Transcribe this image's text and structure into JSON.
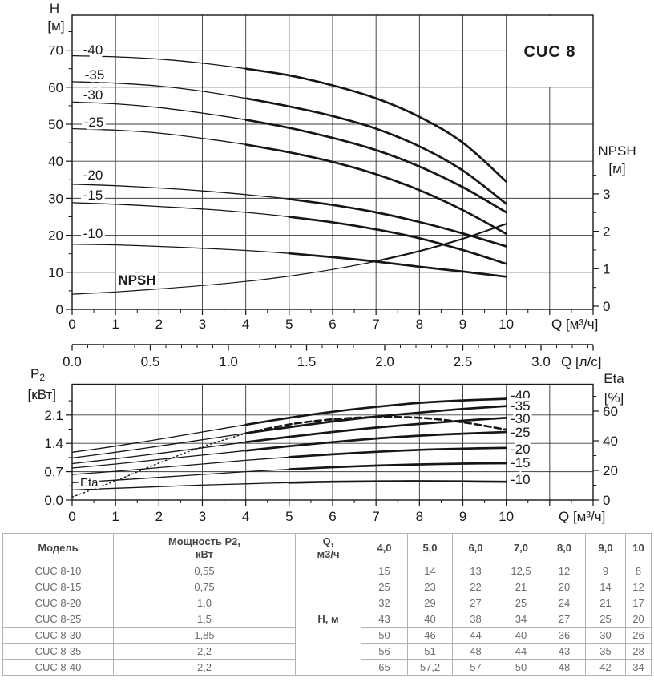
{
  "chart_data": [
    {
      "type": "line",
      "title": "CUC 8",
      "xlabel": "Q [м³/ч]",
      "x2label": "Q [л/с]",
      "ylabel_main": "H",
      "ylabel_unit": "[м]",
      "y2label_main": "NPSH",
      "y2label_unit": "[м]",
      "xlim": [
        0,
        12
      ],
      "ylim": [
        0,
        79
      ],
      "y2lim": [
        0,
        3.5
      ],
      "grid": true,
      "x_ticks": [
        0,
        1,
        2,
        3,
        4,
        5,
        6,
        7,
        8,
        9,
        10
      ],
      "x2_ticks": [
        "0.0",
        "0.5",
        "1.0",
        "1.5",
        "2.0",
        "2.5",
        "3.0"
      ],
      "y_ticks": [
        0,
        10,
        20,
        30,
        40,
        50,
        60,
        70
      ],
      "y2_ticks": [
        0,
        1,
        2,
        3
      ],
      "x": [
        0,
        1,
        2,
        3,
        4,
        5,
        6,
        7,
        8,
        9,
        10
      ],
      "series": [
        {
          "name": "-40",
          "axis": "y",
          "bold_from": 4,
          "values": [
            68.5,
            68.2,
            67.6,
            66.5,
            65.0,
            63.2,
            60.5,
            57.0,
            52.0,
            45.0,
            34.5
          ]
        },
        {
          "name": "-35",
          "axis": "y",
          "bold_from": 4,
          "values": [
            61.5,
            61.1,
            60.3,
            58.9,
            57.0,
            54.8,
            52.2,
            48.8,
            44.0,
            37.5,
            28.5
          ]
        },
        {
          "name": "-30",
          "axis": "y",
          "bold_from": 4,
          "values": [
            56.0,
            55.5,
            54.5,
            53.0,
            51.2,
            49.0,
            46.3,
            43.0,
            38.6,
            33.0,
            26.2
          ]
        },
        {
          "name": "-25",
          "axis": "y",
          "bold_from": 4,
          "values": [
            48.8,
            48.4,
            47.6,
            46.2,
            44.5,
            42.4,
            39.8,
            36.5,
            32.2,
            26.8,
            20.4
          ]
        },
        {
          "name": "-20",
          "axis": "y",
          "bold_from": 5,
          "values": [
            33.8,
            33.4,
            32.8,
            32.0,
            31.0,
            29.8,
            28.2,
            26.2,
            23.6,
            20.5,
            17.0
          ]
        },
        {
          "name": "-15",
          "axis": "y",
          "bold_from": 5,
          "values": [
            28.8,
            28.4,
            27.8,
            27.1,
            26.2,
            25.0,
            23.5,
            21.6,
            19.2,
            16.0,
            12.3
          ]
        },
        {
          "name": "-10",
          "axis": "y",
          "bold_from": 5,
          "values": [
            17.6,
            17.4,
            17.0,
            16.5,
            15.9,
            15.1,
            14.1,
            12.9,
            11.5,
            10.2,
            8.8
          ]
        },
        {
          "name": "NPSH",
          "axis": "y2",
          "bold_from": 7,
          "values": [
            0.32,
            0.38,
            0.46,
            0.55,
            0.66,
            0.8,
            0.98,
            1.2,
            1.47,
            1.8,
            2.2
          ]
        }
      ]
    },
    {
      "type": "line",
      "xlabel": "Q [м³/ч]",
      "ylabel_main": "P",
      "ylabel_sub": "2",
      "ylabel_unit": "[кВт]",
      "y2label_main": "Eta",
      "y2label_unit": "[%]",
      "xlim": [
        0,
        12
      ],
      "ylim": [
        0,
        2.85
      ],
      "y2lim": [
        0,
        78
      ],
      "grid": true,
      "x_ticks": [
        0,
        1,
        2,
        3,
        4,
        5,
        6,
        7,
        8,
        9,
        10
      ],
      "y_ticks": [
        "0.0",
        "0.7",
        "1.4",
        "2.1"
      ],
      "y2_ticks": [
        0,
        20,
        40,
        60
      ],
      "x": [
        0,
        1,
        2,
        3,
        4,
        5,
        6,
        7,
        8,
        9,
        10
      ],
      "series": [
        {
          "name": "-40",
          "axis": "y",
          "bold_from": 4,
          "values": [
            1.18,
            1.33,
            1.5,
            1.68,
            1.86,
            2.03,
            2.18,
            2.3,
            2.4,
            2.46,
            2.5
          ]
        },
        {
          "name": "-35",
          "axis": "y",
          "bold_from": 4,
          "values": [
            1.04,
            1.18,
            1.33,
            1.49,
            1.65,
            1.8,
            1.94,
            2.06,
            2.16,
            2.25,
            2.32
          ]
        },
        {
          "name": "-30",
          "axis": "y",
          "bold_from": 4,
          "values": [
            0.9,
            1.02,
            1.15,
            1.29,
            1.43,
            1.56,
            1.68,
            1.79,
            1.88,
            1.96,
            2.03
          ]
        },
        {
          "name": "-25",
          "axis": "y",
          "bold_from": 4,
          "values": [
            0.79,
            0.89,
            1.0,
            1.11,
            1.22,
            1.33,
            1.43,
            1.52,
            1.59,
            1.64,
            1.68
          ]
        },
        {
          "name": "-20",
          "axis": "y",
          "bold_from": 5,
          "values": [
            0.63,
            0.71,
            0.8,
            0.89,
            0.98,
            1.06,
            1.13,
            1.19,
            1.24,
            1.27,
            1.29
          ]
        },
        {
          "name": "-15",
          "axis": "y",
          "bold_from": 5,
          "values": [
            0.43,
            0.49,
            0.56,
            0.63,
            0.7,
            0.76,
            0.81,
            0.85,
            0.88,
            0.9,
            0.91
          ]
        },
        {
          "name": "-10",
          "axis": "y",
          "bold_from": 5,
          "values": [
            0.25,
            0.29,
            0.33,
            0.37,
            0.4,
            0.43,
            0.45,
            0.46,
            0.465,
            0.46,
            0.45
          ]
        },
        {
          "name": "Eta",
          "axis": "y2",
          "style": "dashed",
          "values": [
            2,
            13,
            25,
            36,
            45,
            51,
            54.5,
            56,
            55.5,
            52.5,
            47.5
          ]
        }
      ]
    }
  ],
  "table": {
    "headers": {
      "model": "Модель",
      "power_lines": [
        "Мощность P2,",
        "кВт"
      ],
      "q_lines": [
        "Q,",
        "м3/ч"
      ]
    },
    "q_columns": [
      "4,0",
      "5,0",
      "6,0",
      "7,0",
      "8,0",
      "9,0",
      "10"
    ],
    "body_quantity_label": "Н, м",
    "rows": [
      {
        "model": "CUC 8-10",
        "power": "0,55",
        "h_values": [
          "15",
          "14",
          "13",
          "12,5",
          "12",
          "9",
          "8"
        ]
      },
      {
        "model": "CUC 8-15",
        "power": "0,75",
        "h_values": [
          "25",
          "23",
          "22",
          "21",
          "20",
          "14",
          "12"
        ]
      },
      {
        "model": "CUC 8-20",
        "power": "1,0",
        "h_values": [
          "32",
          "29",
          "27",
          "25",
          "24",
          "21",
          "17"
        ]
      },
      {
        "model": "CUC 8-25",
        "power": "1,5",
        "h_values": [
          "43",
          "40",
          "38",
          "34",
          "27",
          "25",
          "20"
        ]
      },
      {
        "model": "CUC 8-30",
        "power": "1,85",
        "h_values": [
          "50",
          "46",
          "44",
          "40",
          "36",
          "30",
          "26"
        ]
      },
      {
        "model": "CUC 8-35",
        "power": "2,2",
        "h_values": [
          "56",
          "51",
          "48",
          "44",
          "43",
          "35",
          "28"
        ]
      },
      {
        "model": "CUC 8-40",
        "power": "2,2",
        "h_values": [
          "65",
          "57,2",
          "57",
          "50",
          "48",
          "42",
          "34"
        ]
      }
    ]
  }
}
